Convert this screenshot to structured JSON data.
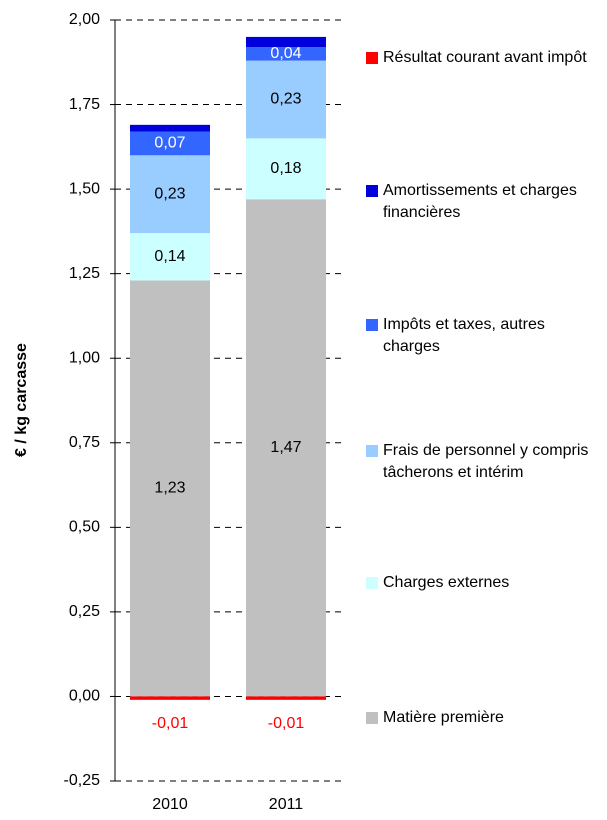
{
  "chart_data": {
    "type": "stacked_bar",
    "y_label": "€ / kg carcasse",
    "categories": [
      "2010",
      "2011"
    ],
    "series": [
      {
        "name": "Matière première",
        "color": "#c0c0c0",
        "label_color": "#000000",
        "values": [
          1.23,
          1.47
        ],
        "value_labels": [
          "1,23",
          "1,47"
        ]
      },
      {
        "name": "Charges externes",
        "color": "#ccffff",
        "label_color": "#000000",
        "values": [
          0.14,
          0.18
        ],
        "value_labels": [
          "0,14",
          "0,18"
        ]
      },
      {
        "name": "Frais de personnel y compris tâcherons et intérim",
        "color": "#99ccff",
        "label_color": "#000000",
        "values": [
          0.23,
          0.23
        ],
        "value_labels": [
          "0,23",
          "0,23"
        ]
      },
      {
        "name": "Impôts et taxes, autres charges",
        "color": "#3366ff",
        "label_color": "#ffffff",
        "values": [
          0.07,
          0.04
        ],
        "value_labels": [
          "0,07",
          "0,04"
        ]
      },
      {
        "name": "Amortissements et charges financières",
        "color": "#0000dd",
        "values": [
          0.02,
          0.03
        ]
      },
      {
        "name": "Résultat courant avant impôt",
        "color": "#ff0000",
        "label_color": "#ff0000",
        "values": [
          -0.01,
          -0.01
        ],
        "value_labels": [
          "-0,01",
          "-0,01"
        ]
      }
    ],
    "ylim": [
      -0.25,
      2.0
    ],
    "yticks": [
      {
        "value": -0.25,
        "label": "-0,25"
      },
      {
        "value": 0,
        "label": "0,00"
      },
      {
        "value": 0.25,
        "label": "0,25"
      },
      {
        "value": 0.5,
        "label": "0,50"
      },
      {
        "value": 0.75,
        "label": "0,75"
      },
      {
        "value": 1,
        "label": "1,00"
      },
      {
        "value": 1.25,
        "label": "1,25"
      },
      {
        "value": 1.5,
        "label": "1,50"
      },
      {
        "value": 1.75,
        "label": "1,75"
      },
      {
        "value": 2,
        "label": "2,00"
      }
    ],
    "grid": true
  }
}
